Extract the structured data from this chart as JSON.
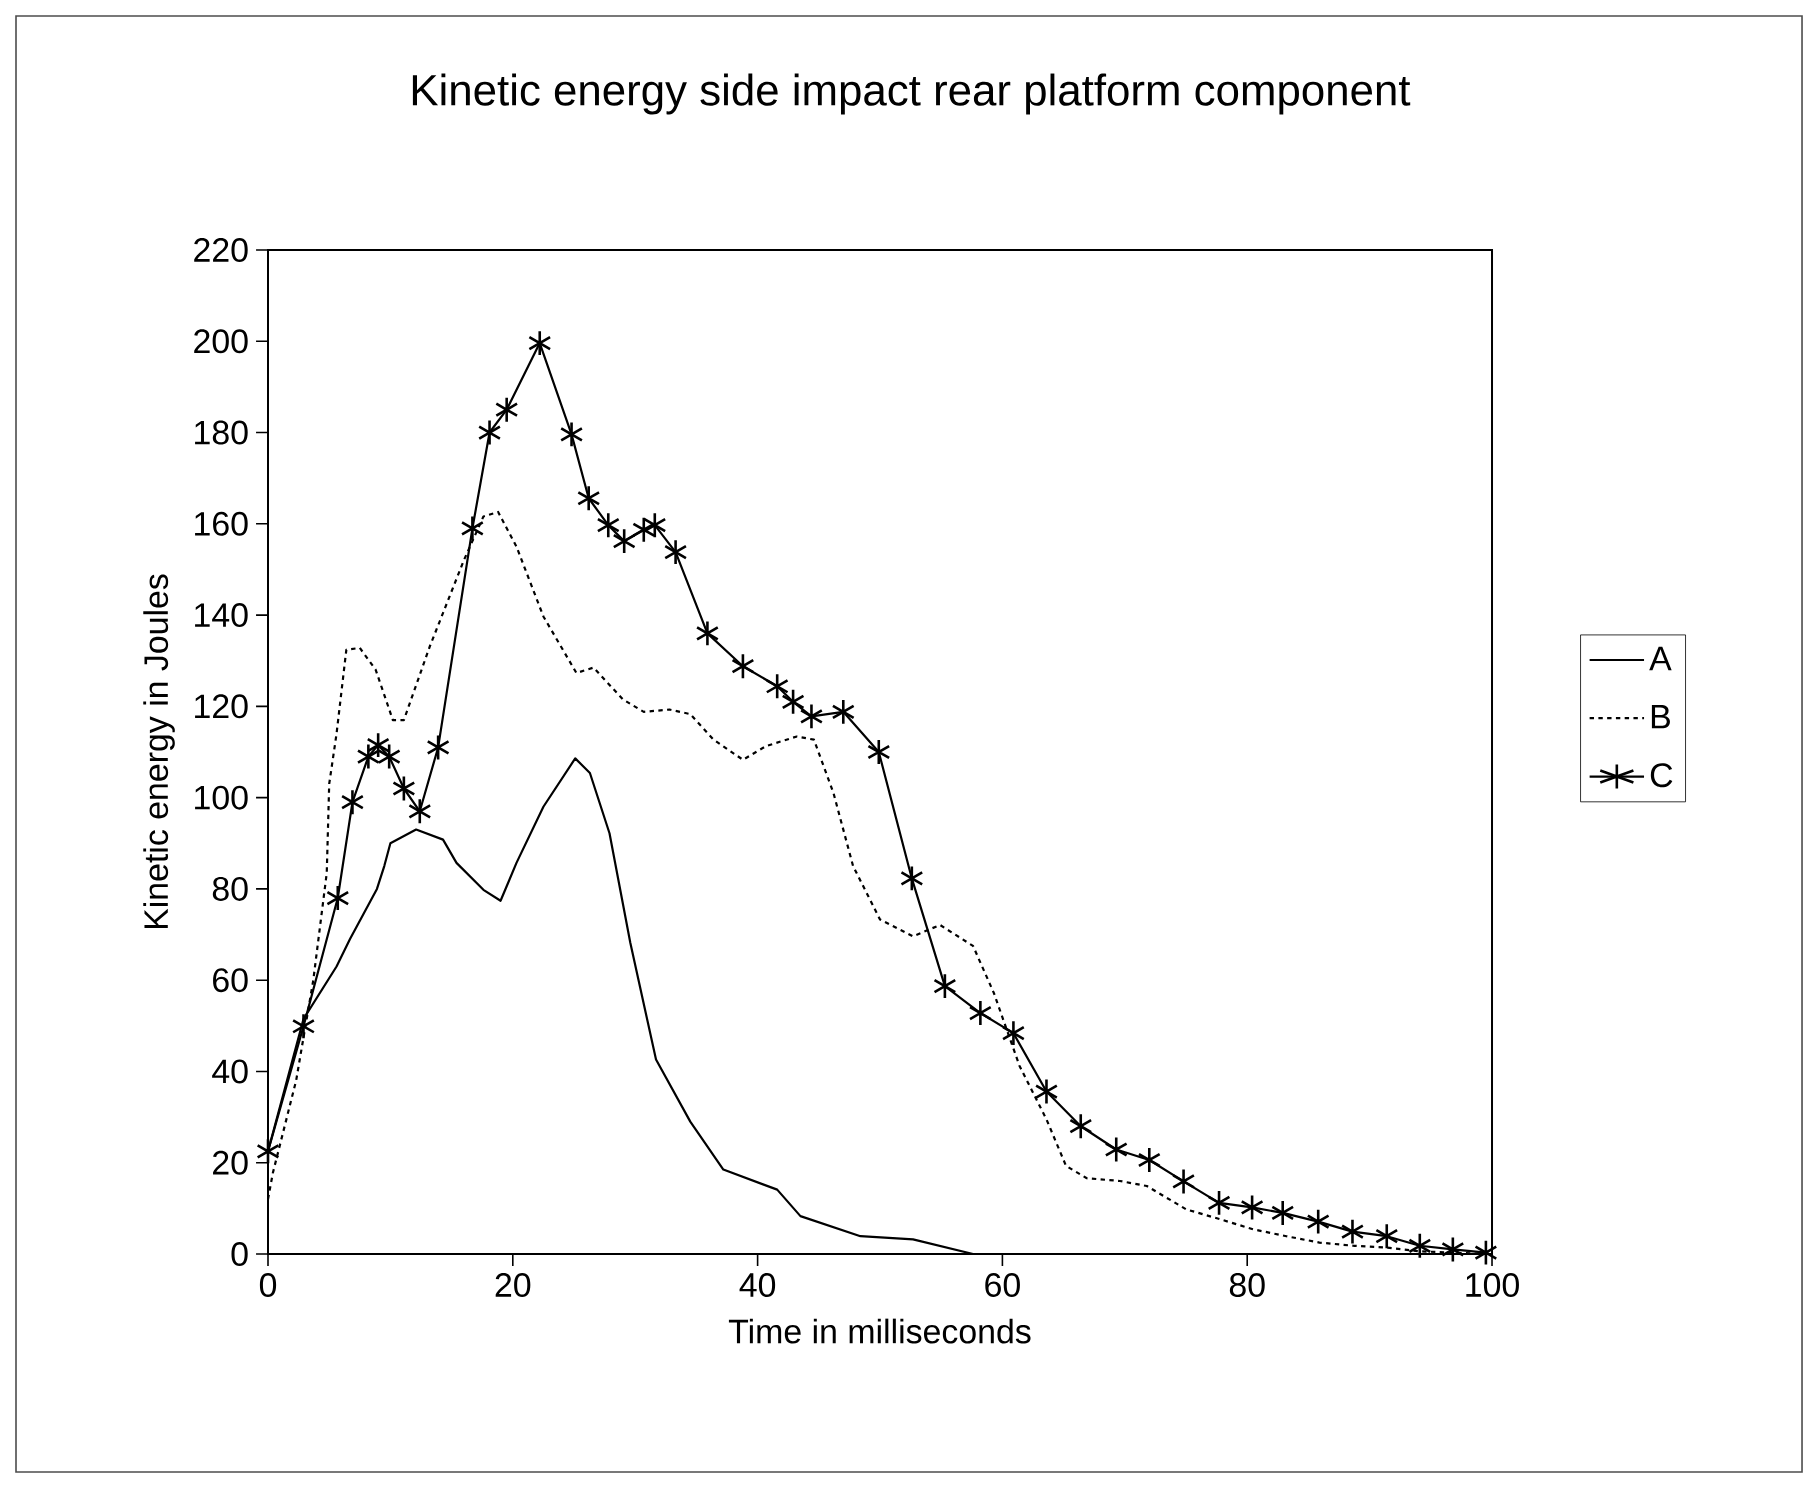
{
  "chart_data": {
    "type": "line",
    "title": "Kinetic energy side impact rear platform component",
    "xlabel": "Time in milliseconds",
    "ylabel": "Kinetic energy in Joules",
    "xlim": [
      0,
      100
    ],
    "ylim": [
      0,
      220
    ],
    "xticks": [
      0,
      20,
      40,
      60,
      80,
      100
    ],
    "yticks": [
      0,
      20,
      40,
      60,
      80,
      100,
      120,
      140,
      160,
      180,
      200,
      220
    ],
    "legend": "right",
    "series": [
      {
        "name": "A",
        "color": "#000000",
        "line_style": "solid",
        "marker": "none",
        "x": [
          0,
          2.9,
          5.6,
          6.7,
          8.9,
          9.5,
          10,
          12.1,
          14.3,
          15.4,
          17.6,
          19,
          20.3,
          22.5,
          25.1,
          26.3,
          27.9,
          29.6,
          31.7,
          34.5,
          37.2,
          41.6,
          43.5,
          48.4,
          52.7,
          57.6,
          100
        ],
        "values": [
          22.5,
          51.5,
          63,
          69,
          80,
          85,
          90,
          93,
          90.8,
          85.7,
          79.8,
          77.4,
          85.7,
          98,
          108.6,
          105.4,
          92.2,
          68.2,
          42.6,
          29,
          18.5,
          14.1,
          8.3,
          3.9,
          3.2,
          0,
          0
        ]
      },
      {
        "name": "B",
        "color": "#000000",
        "line_style": "dotted",
        "marker": "none",
        "x": [
          0,
          0.4,
          2.3,
          3.7,
          4.8,
          5,
          5.6,
          6.4,
          7.5,
          8.8,
          10.2,
          11.1,
          13.2,
          16,
          17.6,
          18.8,
          20.3,
          22.5,
          25.2,
          26.6,
          29,
          30.7,
          32.8,
          34.5,
          36.4,
          38.8,
          40.7,
          43.2,
          44.6,
          46.2,
          47.8,
          50,
          52.7,
          54.9,
          57.6,
          59.3,
          61.4,
          63.6,
          65.2,
          66.9,
          69.6,
          71.8,
          75,
          77.8,
          80.5,
          83.2,
          85.9,
          88.7,
          91.4,
          94.1,
          99.5
        ],
        "values": [
          12,
          17.8,
          38,
          60,
          83.5,
          103,
          114,
          132.4,
          132.8,
          128,
          117,
          117,
          133,
          152,
          161.6,
          162.6,
          155,
          139.7,
          127.3,
          128.5,
          121.5,
          118.8,
          119.3,
          118.3,
          112.7,
          108.3,
          111.3,
          113.4,
          112.7,
          101,
          85,
          73.3,
          69.6,
          72.1,
          67.5,
          57.2,
          41.2,
          29.5,
          19.3,
          16.6,
          16,
          14.9,
          9.8,
          7.6,
          5.4,
          3.9,
          2.5,
          1.8,
          1.4,
          0.6,
          0
        ]
      },
      {
        "name": "C",
        "color": "#000000",
        "line_style": "solid",
        "marker": "cross",
        "x": [
          0,
          2.9,
          5.7,
          6.9,
          8.2,
          9,
          9.9,
          11.1,
          12.4,
          13.9,
          16.7,
          18.1,
          19.5,
          22.2,
          24.8,
          26.2,
          27.8,
          29.1,
          30.7,
          31.6,
          33.3,
          35.9,
          38.8,
          41.6,
          42.9,
          44.4,
          47,
          49.9,
          52.6,
          55.3,
          58.2,
          60.9,
          63.6,
          66.4,
          69.3,
          72,
          74.8,
          77.7,
          80.4,
          82.9,
          85.8,
          88.6,
          91.4,
          94.1,
          96.8,
          99.5
        ],
        "values": [
          22.5,
          49.9,
          78,
          99,
          109,
          111.5,
          109,
          102,
          97,
          111,
          159,
          180,
          185,
          199.6,
          179.6,
          165.6,
          159.7,
          156.2,
          158.7,
          159.7,
          153.8,
          136,
          128.8,
          124.4,
          121,
          117.8,
          118.8,
          110,
          82.3,
          58.7,
          52.8,
          48.4,
          35.6,
          28,
          22.9,
          20.6,
          15.9,
          11.2,
          10.2,
          9,
          7.1,
          4.9,
          3.9,
          1.8,
          1,
          0.3
        ]
      }
    ]
  }
}
